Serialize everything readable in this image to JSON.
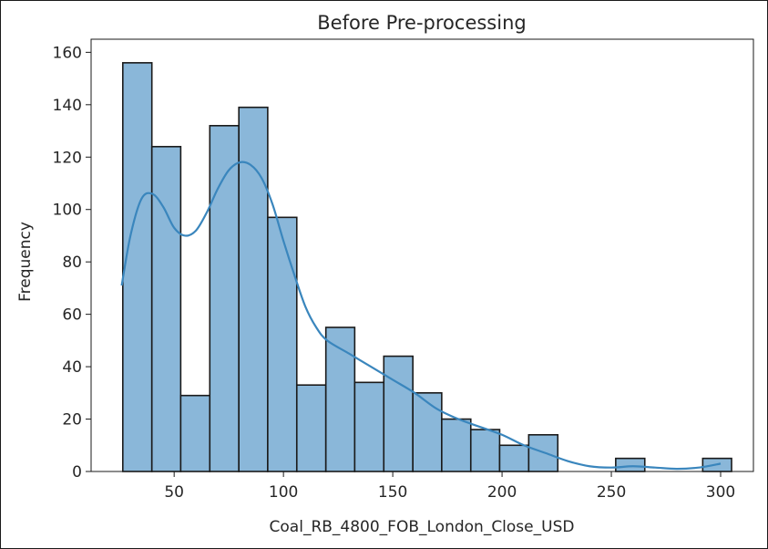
{
  "chart_data": {
    "type": "bar",
    "title": "Before Pre-processing",
    "xlabel": "Coal_RB_4800_FOB_London_Close_USD",
    "ylabel": "Frequency",
    "xlim": [
      12,
      315
    ],
    "ylim": [
      0,
      165
    ],
    "xticks": [
      50,
      100,
      150,
      200,
      250,
      300
    ],
    "yticks": [
      0,
      20,
      40,
      60,
      80,
      100,
      120,
      140,
      160
    ],
    "bins": [
      {
        "x0": 26.5,
        "x1": 39.8,
        "count": 156
      },
      {
        "x0": 39.8,
        "x1": 53.0,
        "count": 124
      },
      {
        "x0": 53.0,
        "x1": 66.3,
        "count": 29
      },
      {
        "x0": 66.3,
        "x1": 79.6,
        "count": 132
      },
      {
        "x0": 79.6,
        "x1": 92.8,
        "count": 139
      },
      {
        "x0": 92.8,
        "x1": 106.1,
        "count": 97
      },
      {
        "x0": 106.1,
        "x1": 119.4,
        "count": 33
      },
      {
        "x0": 119.4,
        "x1": 132.6,
        "count": 55
      },
      {
        "x0": 132.6,
        "x1": 145.9,
        "count": 34
      },
      {
        "x0": 145.9,
        "x1": 159.2,
        "count": 44
      },
      {
        "x0": 159.2,
        "x1": 172.4,
        "count": 30
      },
      {
        "x0": 172.4,
        "x1": 185.7,
        "count": 20
      },
      {
        "x0": 185.7,
        "x1": 198.9,
        "count": 16
      },
      {
        "x0": 198.9,
        "x1": 212.2,
        "count": 10
      },
      {
        "x0": 212.2,
        "x1": 225.5,
        "count": 14
      },
      {
        "x0": 225.5,
        "x1": 238.7,
        "count": 0
      },
      {
        "x0": 238.7,
        "x1": 252.0,
        "count": 0
      },
      {
        "x0": 252.0,
        "x1": 265.3,
        "count": 5
      },
      {
        "x0": 265.3,
        "x1": 278.5,
        "count": 0
      },
      {
        "x0": 278.5,
        "x1": 291.8,
        "count": 0
      },
      {
        "x0": 291.8,
        "x1": 305.0,
        "count": 5
      }
    ],
    "kde": {
      "x": [
        26,
        30,
        35,
        40,
        45,
        50,
        55,
        60,
        65,
        70,
        75,
        80,
        85,
        90,
        95,
        100,
        105,
        110,
        115,
        120,
        130,
        140,
        150,
        160,
        170,
        180,
        190,
        200,
        210,
        220,
        230,
        240,
        250,
        260,
        270,
        280,
        290,
        300
      ],
      "y": [
        71,
        90,
        104,
        106,
        101,
        93,
        90,
        92,
        99,
        108,
        115,
        118,
        117,
        112,
        102,
        88,
        75,
        63,
        55,
        50,
        45,
        40,
        35,
        30,
        24,
        20,
        17,
        14,
        10,
        7,
        4,
        2,
        1.5,
        2,
        1.5,
        1,
        1.5,
        3
      ]
    },
    "bar_fill": "#8ab7d9",
    "bar_edge": "#1a1a1a",
    "kde_color": "#3a86bd",
    "grid": false,
    "legend": false
  }
}
